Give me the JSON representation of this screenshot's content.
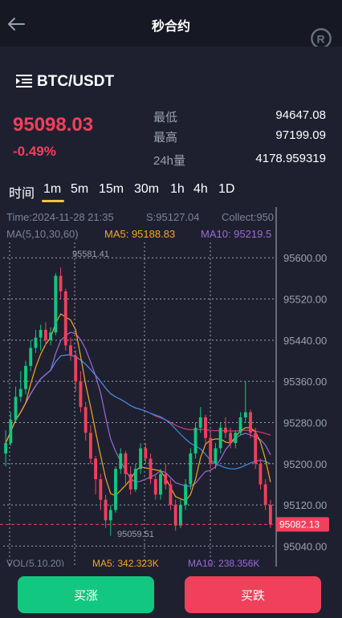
{
  "header": {
    "title": "秒合约",
    "back_icon": "arrow-left-icon",
    "logo_icon": "registered-r-icon"
  },
  "pair": {
    "symbol": "BTC/USDT",
    "icon": "list-menu-icon"
  },
  "quote": {
    "price": "95098.03",
    "change_pct": "-0.49%",
    "stats": [
      {
        "label": "最低",
        "value": "94647.08"
      },
      {
        "label": "最高",
        "value": "97199.09"
      },
      {
        "label": "24h量",
        "value": "4178.959319"
      }
    ]
  },
  "tabs": [
    "时间",
    "1m",
    "5m",
    "15m",
    "30m",
    "1h",
    "4h",
    "1D"
  ],
  "active_tab": "1m",
  "chart_info": {
    "time": "Time:2024-11-28 21:35",
    "s": "S:95127.04",
    "collect": "Collect:950",
    "ma_label": "MA(5,10,30,60)",
    "ma5": "MA5: 95188.83",
    "ma10": "MA10: 95219.5",
    "vol_label": "VOL(5,10,20)",
    "vol_ma5": "MA5: 342.323K",
    "vol_ma10": "MA10: 238.356K"
  },
  "chart_data": {
    "type": "candlestick",
    "y_ticks": [
      "95600.00",
      "95520.00",
      "95440.00",
      "95360.00",
      "95280.00",
      "95200.00",
      "95120.00",
      "95040.00"
    ],
    "ylim": [
      95025,
      95630
    ],
    "high_marker": "95581.41",
    "low_marker": "95059.51",
    "last_price": "95082.13",
    "candles": [
      [
        95220,
        95240,
        95265,
        95195
      ],
      [
        95240,
        95285,
        95300,
        95235
      ],
      [
        95285,
        95330,
        95350,
        95280
      ],
      [
        95330,
        95345,
        95380,
        95320
      ],
      [
        95345,
        95390,
        95400,
        95335
      ],
      [
        95390,
        95425,
        95440,
        95380
      ],
      [
        95425,
        95445,
        95460,
        95415
      ],
      [
        95445,
        95460,
        95470,
        95420
      ],
      [
        95460,
        95440,
        95475,
        95430
      ],
      [
        95440,
        95455,
        95465,
        95430
      ],
      [
        95455,
        95565,
        95570,
        95450
      ],
      [
        95565,
        95535,
        95581,
        95520
      ],
      [
        95535,
        95430,
        95540,
        95420
      ],
      [
        95430,
        95410,
        95445,
        95400
      ],
      [
        95410,
        95360,
        95420,
        95340
      ],
      [
        95360,
        95310,
        95380,
        95300
      ],
      [
        95310,
        95260,
        95320,
        95245
      ],
      [
        95260,
        95210,
        95275,
        95200
      ],
      [
        95210,
        95170,
        95215,
        95140
      ],
      [
        95170,
        95130,
        95180,
        95110
      ],
      [
        95130,
        95090,
        95140,
        95075
      ],
      [
        95090,
        95110,
        95120,
        95060
      ],
      [
        95110,
        95190,
        95195,
        95105
      ],
      [
        95190,
        95220,
        95230,
        95180
      ],
      [
        95220,
        95180,
        95225,
        95160
      ],
      [
        95180,
        95150,
        95195,
        95140
      ],
      [
        95150,
        95190,
        95200,
        95145
      ],
      [
        95190,
        95230,
        95240,
        95180
      ],
      [
        95230,
        95210,
        95240,
        95200
      ],
      [
        95210,
        95170,
        95220,
        95160
      ],
      [
        95170,
        95140,
        95180,
        95130
      ],
      [
        95140,
        95180,
        95190,
        95130
      ],
      [
        95180,
        95160,
        95200,
        95150
      ],
      [
        95160,
        95120,
        95170,
        95110
      ],
      [
        95120,
        95080,
        95130,
        95070
      ],
      [
        95080,
        95120,
        95130,
        95075
      ],
      [
        95120,
        95160,
        95170,
        95110
      ],
      [
        95160,
        95220,
        95230,
        95150
      ],
      [
        95220,
        95270,
        95280,
        95210
      ],
      [
        95270,
        95290,
        95310,
        95260
      ],
      [
        95290,
        95250,
        95295,
        95240
      ],
      [
        95250,
        95200,
        95260,
        95190
      ],
      [
        95200,
        95230,
        95240,
        95190
      ],
      [
        95230,
        95270,
        95280,
        95220
      ],
      [
        95270,
        95260,
        95290,
        95250
      ],
      [
        95260,
        95240,
        95270,
        95230
      ],
      [
        95240,
        95260,
        95265,
        95230
      ],
      [
        95260,
        95290,
        95300,
        95255
      ],
      [
        95290,
        95300,
        95360,
        95280
      ],
      [
        95300,
        95260,
        95305,
        95250
      ],
      [
        95260,
        95200,
        95270,
        95190
      ],
      [
        95200,
        95160,
        95210,
        95150
      ],
      [
        95160,
        95120,
        95170,
        95110
      ],
      [
        95120,
        95082,
        95130,
        95075
      ]
    ]
  },
  "colors": {
    "up": "#12c77f",
    "down": "#f0405b",
    "ma5": "#f5a623",
    "ma10": "#9b6bd6",
    "ma30": "#3b8fe3",
    "ma60": "#d63a7a"
  },
  "buttons": {
    "buy": "买涨",
    "sell": "买跌"
  }
}
